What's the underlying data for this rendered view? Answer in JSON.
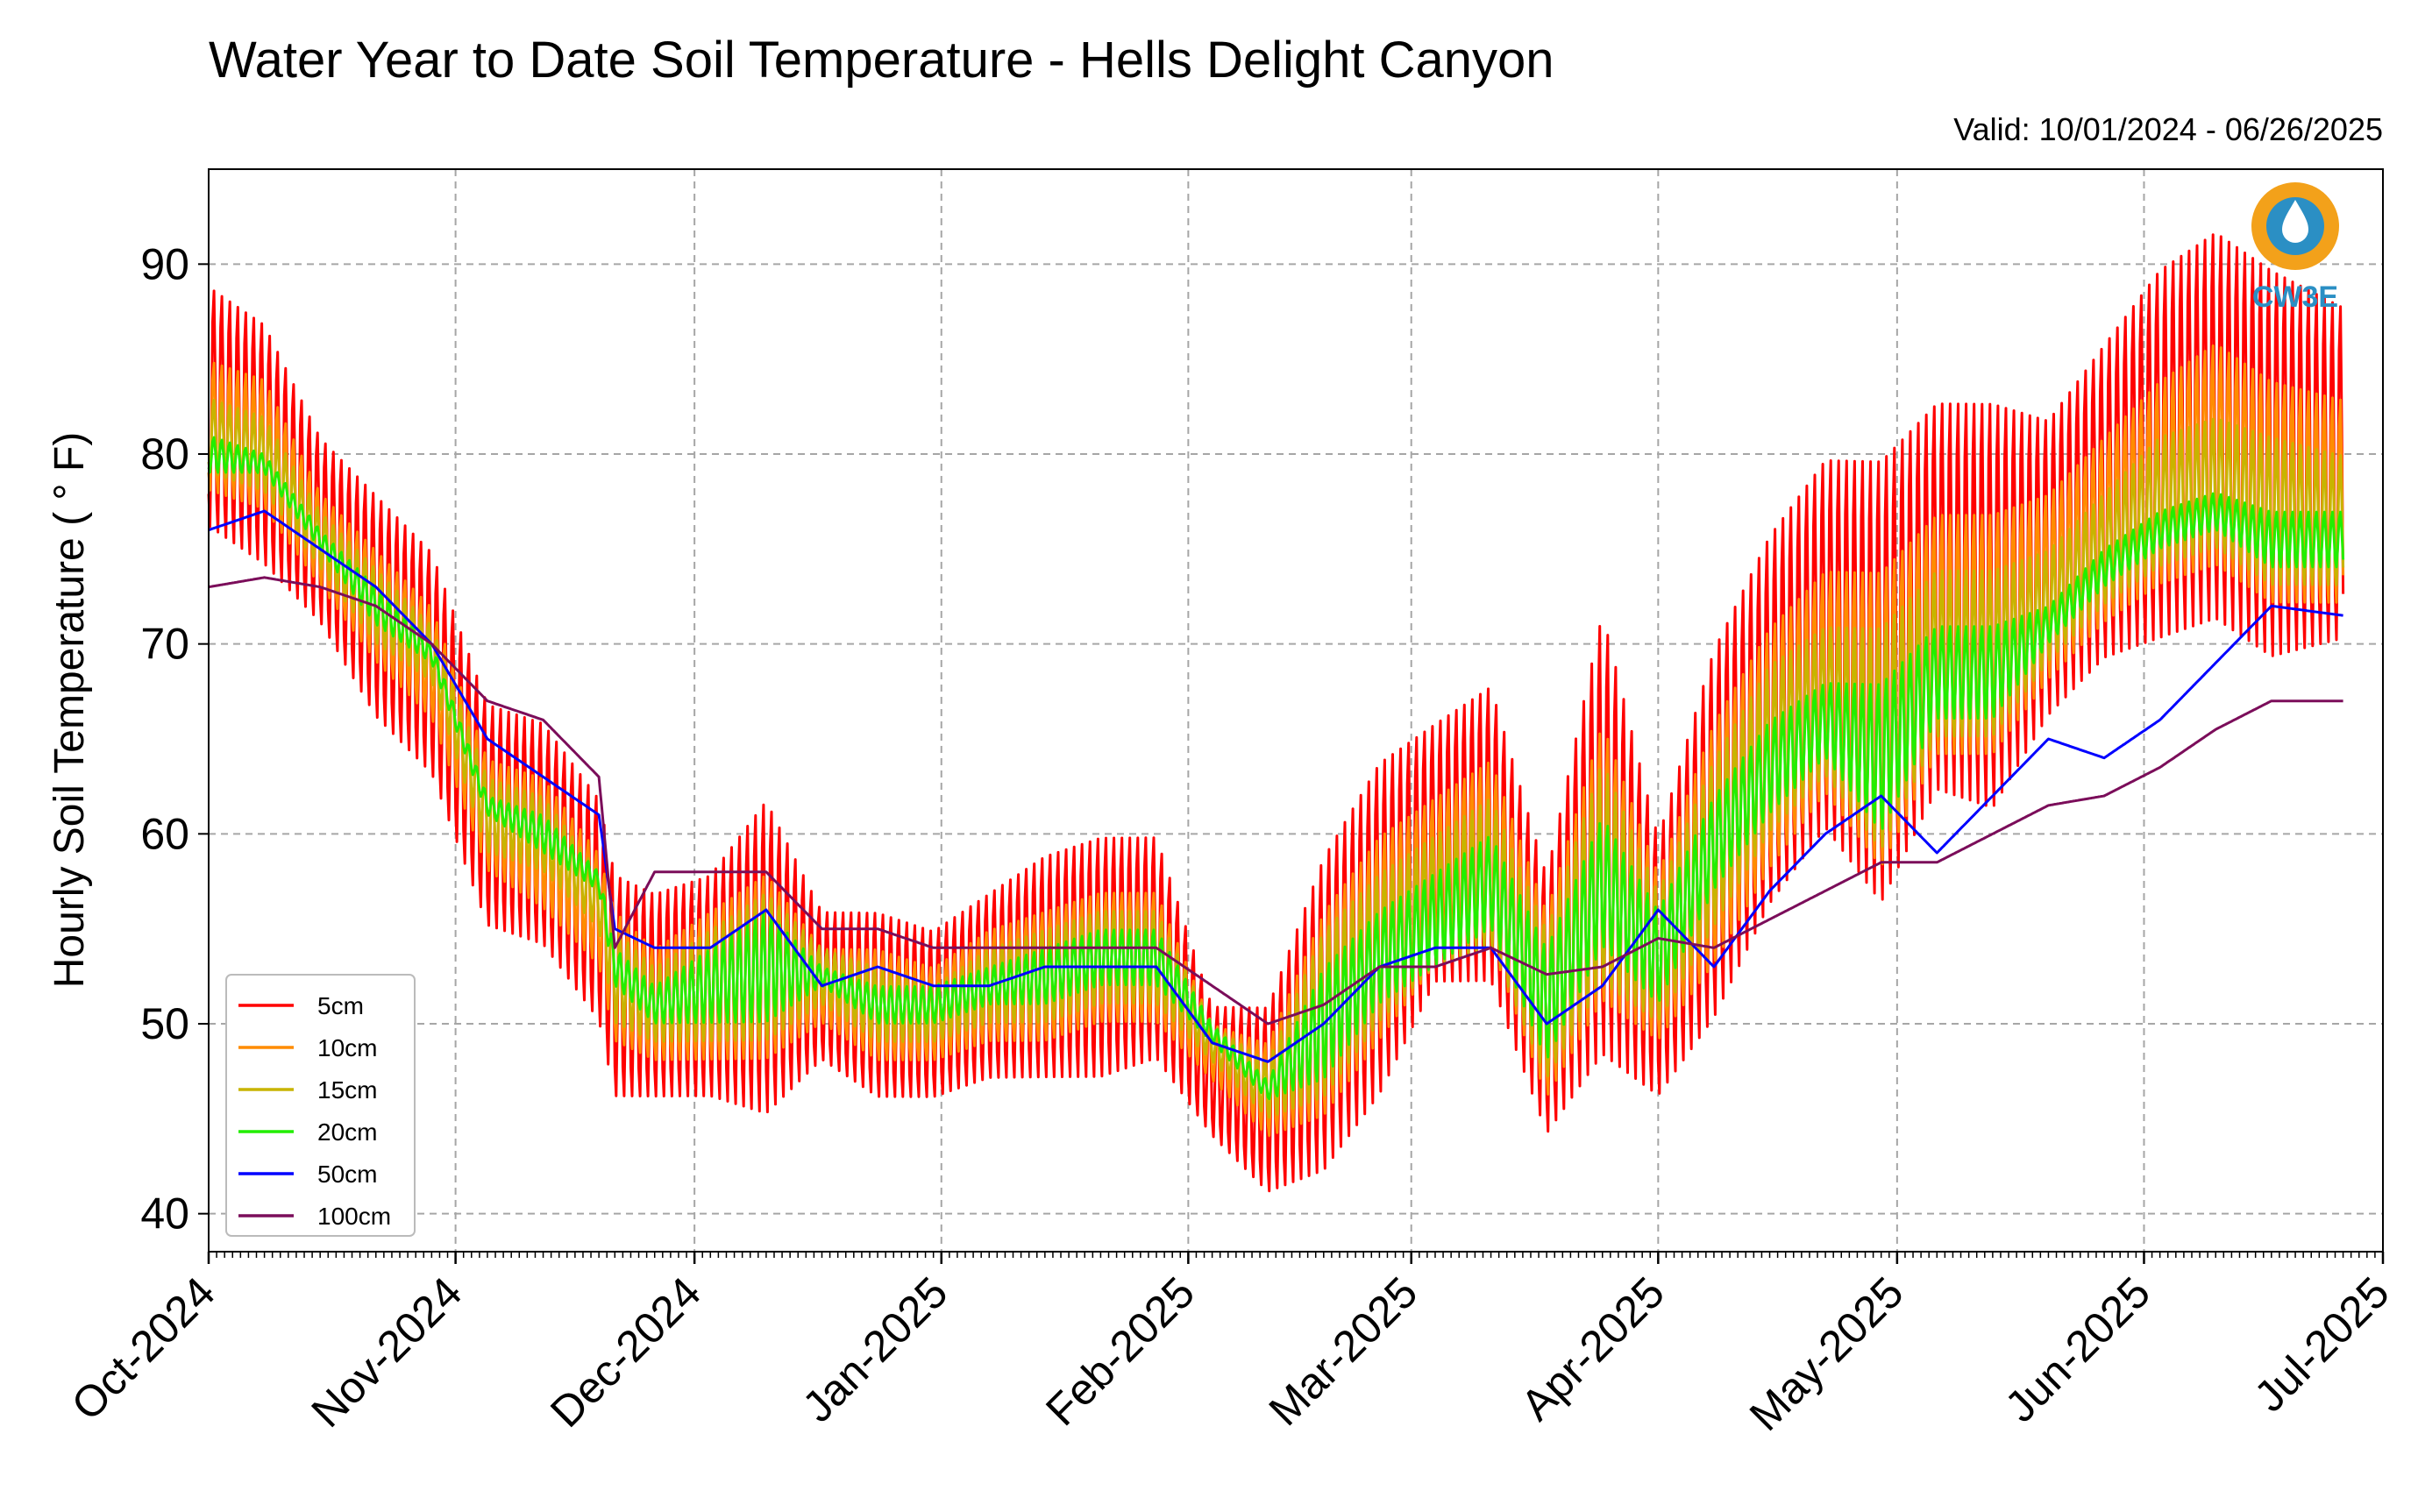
{
  "chart_data": {
    "type": "line",
    "title": "Water Year to Date Soil Temperature - Hells Delight Canyon",
    "subtitle": "Valid: 10/01/2024 - 06/26/2025",
    "xlabel": "",
    "ylabel": "Hourly Soil Temperature ( ° F)",
    "xlim": [
      "2024-10-01",
      "2025-07-01"
    ],
    "ylim": [
      38,
      95
    ],
    "grid": true,
    "legend_position": "lower-left",
    "x_tick_labels": [
      "Oct-2024",
      "Nov-2024",
      "Dec-2024",
      "Jan-2025",
      "Feb-2025",
      "Mar-2025",
      "Apr-2025",
      "May-2025",
      "Jun-2025",
      "Jul-2025"
    ],
    "x_tick_dates": [
      "2024-10-01",
      "2024-11-01",
      "2024-12-01",
      "2025-01-01",
      "2025-02-01",
      "2025-03-01",
      "2025-04-01",
      "2025-05-01",
      "2025-06-01",
      "2025-07-01"
    ],
    "y_ticks": [
      40,
      50,
      60,
      70,
      80,
      90
    ],
    "x": [
      "2024-10-01",
      "2024-10-08",
      "2024-10-15",
      "2024-10-22",
      "2024-10-29",
      "2024-11-05",
      "2024-11-12",
      "2024-11-19",
      "2024-11-21",
      "2024-11-26",
      "2024-12-03",
      "2024-12-10",
      "2024-12-17",
      "2024-12-24",
      "2024-12-31",
      "2025-01-07",
      "2025-01-14",
      "2025-01-21",
      "2025-01-28",
      "2025-02-04",
      "2025-02-11",
      "2025-02-18",
      "2025-02-25",
      "2025-03-04",
      "2025-03-11",
      "2025-03-18",
      "2025-03-25",
      "2025-04-01",
      "2025-04-08",
      "2025-04-15",
      "2025-04-22",
      "2025-04-29",
      "2025-05-06",
      "2025-05-13",
      "2025-05-20",
      "2025-05-27",
      "2025-06-03",
      "2025-06-10",
      "2025-06-17",
      "2025-06-26"
    ],
    "series": [
      {
        "name": "5cm",
        "color": "#ff0000",
        "min": [
          76,
          74,
          71,
          66,
          63,
          55,
          54,
          50,
          46,
          46,
          46,
          45,
          48,
          46,
          46,
          47,
          47,
          47,
          48,
          44,
          41,
          42,
          46,
          52,
          52,
          44,
          48,
          46,
          50,
          56,
          60,
          56,
          62,
          61,
          66,
          69,
          70,
          71,
          69,
          70
        ],
        "max": [
          89,
          87,
          81,
          78,
          75,
          67,
          66,
          62,
          58,
          57,
          58,
          62,
          56,
          56,
          55,
          57,
          59,
          60,
          60,
          51,
          51,
          59,
          64,
          66,
          68,
          58,
          72,
          60,
          70,
          76,
          80,
          80,
          83,
          83,
          82,
          86,
          90,
          92,
          90,
          88
        ]
      },
      {
        "name": "10cm",
        "color": "#ff8c00",
        "min": [
          78,
          77,
          73,
          69,
          66,
          58,
          56,
          53,
          49,
          48,
          48,
          48,
          50,
          48,
          48,
          49,
          49,
          50,
          50,
          47,
          44,
          45,
          49,
          53,
          54,
          46,
          51,
          49,
          53,
          58,
          62,
          58,
          64,
          64,
          68,
          71,
          73,
          74,
          72,
          72
        ],
        "max": [
          85,
          84,
          78,
          75,
          72,
          64,
          63,
          59,
          56,
          54,
          56,
          58,
          54,
          54,
          53,
          55,
          56,
          57,
          57,
          50,
          49,
          56,
          60,
          62,
          64,
          56,
          66,
          58,
          66,
          71,
          74,
          74,
          77,
          77,
          78,
          81,
          84,
          86,
          84,
          83
        ]
      },
      {
        "name": "15cm",
        "color": "#c8b400",
        "min": [
          79,
          78,
          74,
          70,
          68,
          59,
          58,
          55,
          50,
          49,
          49,
          49,
          51,
          49,
          49,
          50,
          50,
          51,
          51,
          48,
          45,
          46,
          50,
          53,
          54,
          47,
          52,
          50,
          55,
          60,
          63,
          59,
          65,
          65,
          69,
          72,
          74,
          75,
          73,
          73
        ],
        "max": [
          83,
          82,
          77,
          74,
          71,
          63,
          62,
          58,
          55,
          53,
          55,
          57,
          54,
          53,
          52,
          54,
          55,
          56,
          56,
          50,
          48,
          55,
          58,
          60,
          62,
          55,
          64,
          57,
          64,
          69,
          71,
          71,
          74,
          74,
          75,
          78,
          81,
          82,
          81,
          80
        ]
      },
      {
        "name": "20cm",
        "color": "#22ee00",
        "min": [
          79,
          79,
          75,
          71,
          69,
          61,
          59,
          57,
          52,
          50,
          50,
          50,
          52,
          50,
          50,
          51,
          51,
          52,
          52,
          49,
          46,
          47,
          51,
          53,
          55,
          48,
          54,
          51,
          57,
          61,
          64,
          60,
          66,
          66,
          70,
          73,
          75,
          76,
          74,
          74
        ],
        "max": [
          81,
          80,
          76,
          73,
          70,
          62,
          61,
          58,
          54,
          52,
          54,
          56,
          53,
          52,
          52,
          53,
          54,
          55,
          55,
          50,
          47,
          53,
          56,
          58,
          60,
          54,
          61,
          56,
          62,
          66,
          68,
          68,
          71,
          71,
          72,
          75,
          77,
          78,
          77,
          77
        ]
      },
      {
        "name": "50cm",
        "color": "#0000ff",
        "values": [
          76,
          77,
          75,
          73,
          70,
          65,
          63,
          61,
          55,
          54,
          54,
          56,
          52,
          53,
          52,
          52,
          53,
          53,
          53,
          49,
          48,
          50,
          53,
          54,
          54,
          50,
          52,
          56,
          53,
          57,
          60,
          62,
          59,
          62,
          65,
          64,
          66,
          69,
          72,
          71.5
        ]
      },
      {
        "name": "100cm",
        "color": "#7b0d5a",
        "values": [
          73,
          73.5,
          73,
          72,
          70,
          67,
          66,
          63,
          54,
          58,
          58,
          58,
          55,
          55,
          54,
          54,
          54,
          54,
          54,
          52,
          50,
          51,
          53,
          53,
          54,
          52.6,
          53,
          54.5,
          54,
          55.5,
          57,
          58.5,
          58.5,
          60,
          61.5,
          62,
          63.5,
          65.5,
          67,
          67
        ]
      }
    ]
  },
  "logo": {
    "text": "CW3E"
  }
}
